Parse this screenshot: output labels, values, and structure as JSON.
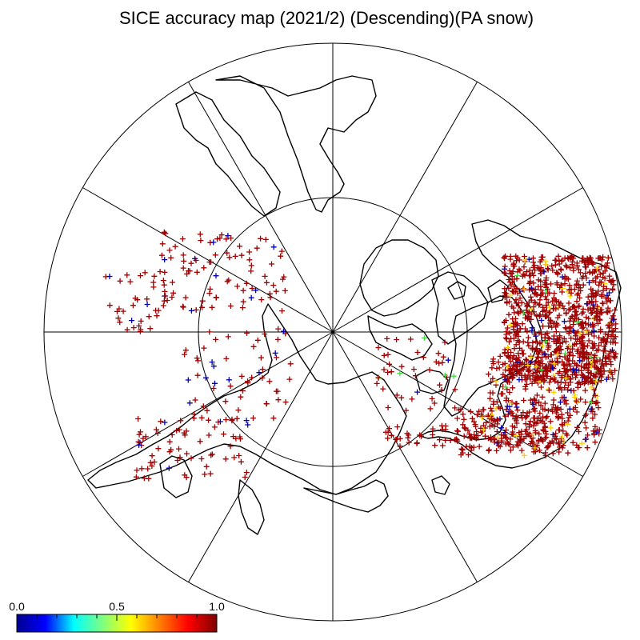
{
  "title": "SICE accuracy map (2021/2) (Descending)(PA snow)",
  "colorbar": {
    "tick_labels": [
      "0.0",
      "0.5",
      "1.0"
    ],
    "range": [
      0.0,
      1.0
    ],
    "colormap": "jet",
    "stops": [
      "#00008f",
      "#0000ff",
      "#00ffff",
      "#7fff7f",
      "#ffff00",
      "#ff7f00",
      "#ff0000",
      "#7f0000"
    ]
  },
  "marker_colors": {
    "high": "#a00000",
    "low": "#0000b0",
    "mid": "#ffd000",
    "green": "#40e040"
  },
  "map": {
    "projection": "north-polar-stereographic",
    "meridian_spacing_deg": 30,
    "inner_latitude_circle": true
  }
}
